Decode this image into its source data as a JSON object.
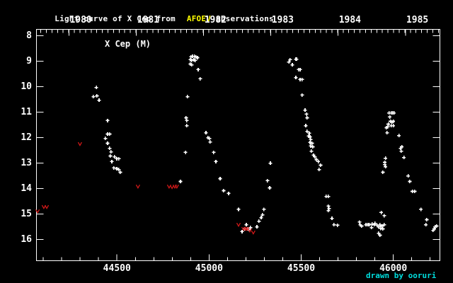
{
  "title": {
    "prefix": "Light curve of X Cep from",
    "highlight": "AFOEV",
    "suffix": "observations"
  },
  "series_label": "X Cep (M)",
  "credit": "drawn by ooruri",
  "colors": {
    "background": "#000000",
    "foreground": "#ffffff",
    "title_highlight": "#ffff00",
    "credit_text": "#00dddd",
    "observation_marker": "#ffffff",
    "fainter_than_marker": "#d01818"
  },
  "chart_data": {
    "type": "scatter",
    "title": "Light curve of X Cep from AFOEV observations",
    "y_inverted": true,
    "grid": false,
    "x_range": [
      44063,
      46253
    ],
    "y_range_mag": [
      7.75,
      16.83
    ],
    "x_major_ticks": [
      44500,
      45000,
      45500,
      46000
    ],
    "x_major_tick_labels": [
      "44500",
      "45000",
      "45500",
      "46000"
    ],
    "x_minor_tick_step": 100,
    "year_ticks": [
      {
        "label": "1980",
        "jd": 44239.5
      },
      {
        "label": "1981",
        "jd": 44605.5
      },
      {
        "label": "1982",
        "jd": 44970.5
      },
      {
        "label": "1983",
        "jd": 45335.5
      },
      {
        "label": "1984",
        "jd": 45700.5
      },
      {
        "label": "1985",
        "jd": 46066.5
      }
    ],
    "month_tick_step_days": 30.4,
    "month_tick_origin_jd": 43873.5,
    "mag_ticks": [
      8,
      9,
      10,
      11,
      12,
      13,
      14,
      15,
      16
    ],
    "series": [
      {
        "name": "observations",
        "marker": "plus",
        "color": "#ffffff",
        "points": [
          [
            44372,
            10.39
          ],
          [
            44388,
            10.03
          ],
          [
            44391,
            10.36
          ],
          [
            44403,
            10.53
          ],
          [
            44437,
            12.03
          ],
          [
            44449,
            11.33
          ],
          [
            44449,
            11.86
          ],
          [
            44449,
            12.22
          ],
          [
            44460,
            11.86
          ],
          [
            44460,
            12.42
          ],
          [
            44464,
            12.72
          ],
          [
            44468,
            12.56
          ],
          [
            44472,
            12.94
          ],
          [
            44483,
            13.19
          ],
          [
            44487,
            12.75
          ],
          [
            44499,
            12.83
          ],
          [
            44499,
            13.22
          ],
          [
            44510,
            12.83
          ],
          [
            44510,
            13.25
          ],
          [
            44518,
            13.36
          ],
          [
            44845,
            13.72
          ],
          [
            44872,
            12.58
          ],
          [
            44875,
            11.22
          ],
          [
            44879,
            11.33
          ],
          [
            44879,
            11.53
          ],
          [
            44883,
            10.39
          ],
          [
            44898,
            8.94
          ],
          [
            44898,
            9.11
          ],
          [
            44902,
            8.83
          ],
          [
            44906,
            8.97
          ],
          [
            44906,
            9.14
          ],
          [
            44910,
            8.81
          ],
          [
            44918,
            8.94
          ],
          [
            44921,
            8.81
          ],
          [
            44925,
            8.97
          ],
          [
            44929,
            8.83
          ],
          [
            44937,
            8.86
          ],
          [
            44941,
            9.33
          ],
          [
            44952,
            9.69
          ],
          [
            44983,
            11.81
          ],
          [
            44994,
            12.0
          ],
          [
            45002,
            12.03
          ],
          [
            45006,
            12.17
          ],
          [
            45025,
            12.58
          ],
          [
            45037,
            12.94
          ],
          [
            45060,
            13.61
          ],
          [
            45079,
            14.08
          ],
          [
            45106,
            14.19
          ],
          [
            45160,
            14.81
          ],
          [
            45179,
            15.69
          ],
          [
            45194,
            15.58
          ],
          [
            45202,
            15.42
          ],
          [
            45210,
            15.58
          ],
          [
            45217,
            15.61
          ],
          [
            45225,
            15.53
          ],
          [
            45260,
            15.5
          ],
          [
            45271,
            15.28
          ],
          [
            45283,
            15.14
          ],
          [
            45290,
            15.03
          ],
          [
            45298,
            14.81
          ],
          [
            45317,
            13.69
          ],
          [
            45329,
            13.97
          ],
          [
            45333,
            13.0
          ],
          [
            45433,
            9.03
          ],
          [
            45440,
            8.94
          ],
          [
            45452,
            9.14
          ],
          [
            45471,
            8.92
          ],
          [
            45471,
            9.64
          ],
          [
            45475,
            8.92
          ],
          [
            45486,
            9.33
          ],
          [
            45494,
            9.33
          ],
          [
            45494,
            9.72
          ],
          [
            45505,
            9.72
          ],
          [
            45505,
            10.33
          ],
          [
            45521,
            10.92
          ],
          [
            45525,
            11.53
          ],
          [
            45529,
            11.08
          ],
          [
            45532,
            11.22
          ],
          [
            45532,
            11.75
          ],
          [
            45540,
            11.94
          ],
          [
            45544,
            11.83
          ],
          [
            45548,
            11.97
          ],
          [
            45548,
            12.19
          ],
          [
            45551,
            12.08
          ],
          [
            45551,
            12.33
          ],
          [
            45555,
            12.53
          ],
          [
            45559,
            12.22
          ],
          [
            45563,
            12.36
          ],
          [
            45567,
            12.69
          ],
          [
            45574,
            12.75
          ],
          [
            45582,
            12.86
          ],
          [
            45593,
            12.94
          ],
          [
            45597,
            13.25
          ],
          [
            45605,
            13.08
          ],
          [
            45636,
            14.31
          ],
          [
            45647,
            14.31
          ],
          [
            45647,
            14.69
          ],
          [
            45647,
            14.86
          ],
          [
            45651,
            14.78
          ],
          [
            45667,
            15.17
          ],
          [
            45678,
            15.42
          ],
          [
            45697,
            15.44
          ],
          [
            45816,
            15.31
          ],
          [
            45820,
            15.42
          ],
          [
            45828,
            15.47
          ],
          [
            45851,
            15.42
          ],
          [
            45858,
            15.42
          ],
          [
            45866,
            15.42
          ],
          [
            45870,
            15.42
          ],
          [
            45882,
            15.53
          ],
          [
            45885,
            15.39
          ],
          [
            45897,
            15.42
          ],
          [
            45901,
            15.36
          ],
          [
            45912,
            15.44
          ],
          [
            45920,
            15.5
          ],
          [
            45920,
            15.75
          ],
          [
            45928,
            15.42
          ],
          [
            45928,
            15.83
          ],
          [
            45931,
            15.56
          ],
          [
            45935,
            14.94
          ],
          [
            45939,
            15.47
          ],
          [
            45943,
            15.58
          ],
          [
            45951,
            15.42
          ],
          [
            45951,
            15.06
          ],
          [
            45943,
            13.36
          ],
          [
            45954,
            12.97
          ],
          [
            45954,
            13.06
          ],
          [
            45958,
            12.81
          ],
          [
            45958,
            13.14
          ],
          [
            45962,
            11.61
          ],
          [
            45966,
            11.81
          ],
          [
            45970,
            11.58
          ],
          [
            45973,
            11.47
          ],
          [
            45977,
            11.03
          ],
          [
            45981,
            11.19
          ],
          [
            45985,
            11.36
          ],
          [
            45989,
            11.03
          ],
          [
            45989,
            11.53
          ],
          [
            45993,
            11.39
          ],
          [
            45996,
            11.03
          ],
          [
            46000,
            11.36
          ],
          [
            46000,
            11.53
          ],
          [
            46004,
            11.03
          ],
          [
            46031,
            11.92
          ],
          [
            46039,
            12.42
          ],
          [
            46043,
            12.53
          ],
          [
            46046,
            12.36
          ],
          [
            46058,
            12.78
          ],
          [
            46081,
            13.5
          ],
          [
            46089,
            13.72
          ],
          [
            46104,
            14.11
          ],
          [
            46116,
            14.11
          ],
          [
            46150,
            14.81
          ],
          [
            46177,
            15.42
          ],
          [
            46181,
            15.22
          ],
          [
            46216,
            15.64
          ],
          [
            46223,
            15.58
          ],
          [
            46227,
            15.5
          ],
          [
            46235,
            15.47
          ]
        ]
      },
      {
        "name": "fainter-than-limits",
        "marker": "v",
        "color": "#d01818",
        "points": [
          [
            44069,
            14.89
          ],
          [
            44103,
            14.72
          ],
          [
            44119,
            14.72
          ],
          [
            44299,
            12.25
          ],
          [
            44614,
            13.92
          ],
          [
            44783,
            13.92
          ],
          [
            44799,
            13.94
          ],
          [
            44814,
            13.92
          ],
          [
            44825,
            13.92
          ],
          [
            45160,
            15.42
          ],
          [
            45187,
            15.58
          ],
          [
            45198,
            15.58
          ],
          [
            45206,
            15.58
          ],
          [
            45221,
            15.64
          ],
          [
            45240,
            15.72
          ]
        ]
      }
    ]
  }
}
